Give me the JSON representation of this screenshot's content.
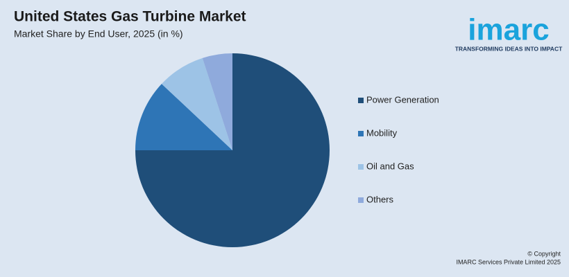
{
  "chart_data": {
    "type": "pie",
    "title": "United States Gas Turbine Market",
    "subtitle": "Market Share by End User, 2025 (in %)",
    "categories": [
      "Power Generation",
      "Mobility",
      "Oil and Gas",
      "Others"
    ],
    "values": [
      75,
      12,
      8,
      5
    ],
    "colors": [
      "#1f4e79",
      "#2e75b6",
      "#9dc3e6",
      "#8faadc"
    ]
  },
  "logo": {
    "name": "imarc",
    "tagline": "TRANSFORMING IDEAS INTO IMPACT"
  },
  "footer": {
    "copyright": "© Copyright",
    "company": "IMARC Services Private Limited 2025"
  }
}
